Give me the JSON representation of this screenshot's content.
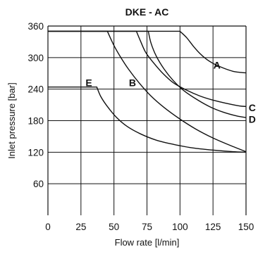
{
  "chart_data": {
    "type": "line",
    "title": "DKE - AC",
    "xlabel": "Flow rate [l/min]",
    "ylabel": "Inlet pressure [bar]",
    "xlim": [
      0,
      150
    ],
    "ylim": [
      0,
      360
    ],
    "xticks": [
      0,
      25,
      50,
      75,
      100,
      125,
      150
    ],
    "yticks": [
      60,
      120,
      180,
      240,
      300,
      360
    ],
    "grid": true,
    "series": [
      {
        "name": "A",
        "points": [
          [
            0,
            350
          ],
          [
            100,
            350
          ],
          [
            105,
            338
          ],
          [
            110,
            322
          ],
          [
            115,
            308
          ],
          [
            120,
            297
          ],
          [
            125,
            289
          ],
          [
            130,
            283
          ],
          [
            135,
            278
          ],
          [
            140,
            274
          ],
          [
            145,
            272
          ],
          [
            150,
            271
          ]
        ]
      },
      {
        "name": "C",
        "points": [
          [
            0,
            350
          ],
          [
            67,
            350
          ],
          [
            70,
            332
          ],
          [
            74,
            310
          ],
          [
            80,
            290
          ],
          [
            87,
            270
          ],
          [
            95,
            252
          ],
          [
            105,
            238
          ],
          [
            115,
            227
          ],
          [
            125,
            219
          ],
          [
            135,
            213
          ],
          [
            145,
            208
          ],
          [
            150,
            207
          ]
        ]
      },
      {
        "name": "D",
        "points": [
          [
            0,
            350
          ],
          [
            76,
            350
          ],
          [
            78,
            328
          ],
          [
            82,
            303
          ],
          [
            88,
            278
          ],
          [
            95,
            256
          ],
          [
            103,
            237
          ],
          [
            113,
            220
          ],
          [
            123,
            206
          ],
          [
            133,
            196
          ],
          [
            143,
            189
          ],
          [
            150,
            186
          ]
        ]
      },
      {
        "name": "B",
        "points": [
          [
            0,
            350
          ],
          [
            45,
            350
          ],
          [
            50,
            323
          ],
          [
            55,
            301
          ],
          [
            61,
            278
          ],
          [
            69,
            252
          ],
          [
            78,
            227
          ],
          [
            88,
            205
          ],
          [
            100,
            183
          ],
          [
            112,
            164
          ],
          [
            125,
            147
          ],
          [
            137,
            134
          ],
          [
            150,
            121
          ]
        ]
      },
      {
        "name": "E",
        "points": [
          [
            0,
            244
          ],
          [
            37,
            244
          ],
          [
            40,
            226
          ],
          [
            45,
            207
          ],
          [
            52,
            186
          ],
          [
            60,
            169
          ],
          [
            70,
            155
          ],
          [
            82,
            143
          ],
          [
            95,
            135
          ],
          [
            110,
            128
          ],
          [
            125,
            124
          ],
          [
            140,
            121
          ],
          [
            150,
            120
          ]
        ]
      }
    ]
  }
}
